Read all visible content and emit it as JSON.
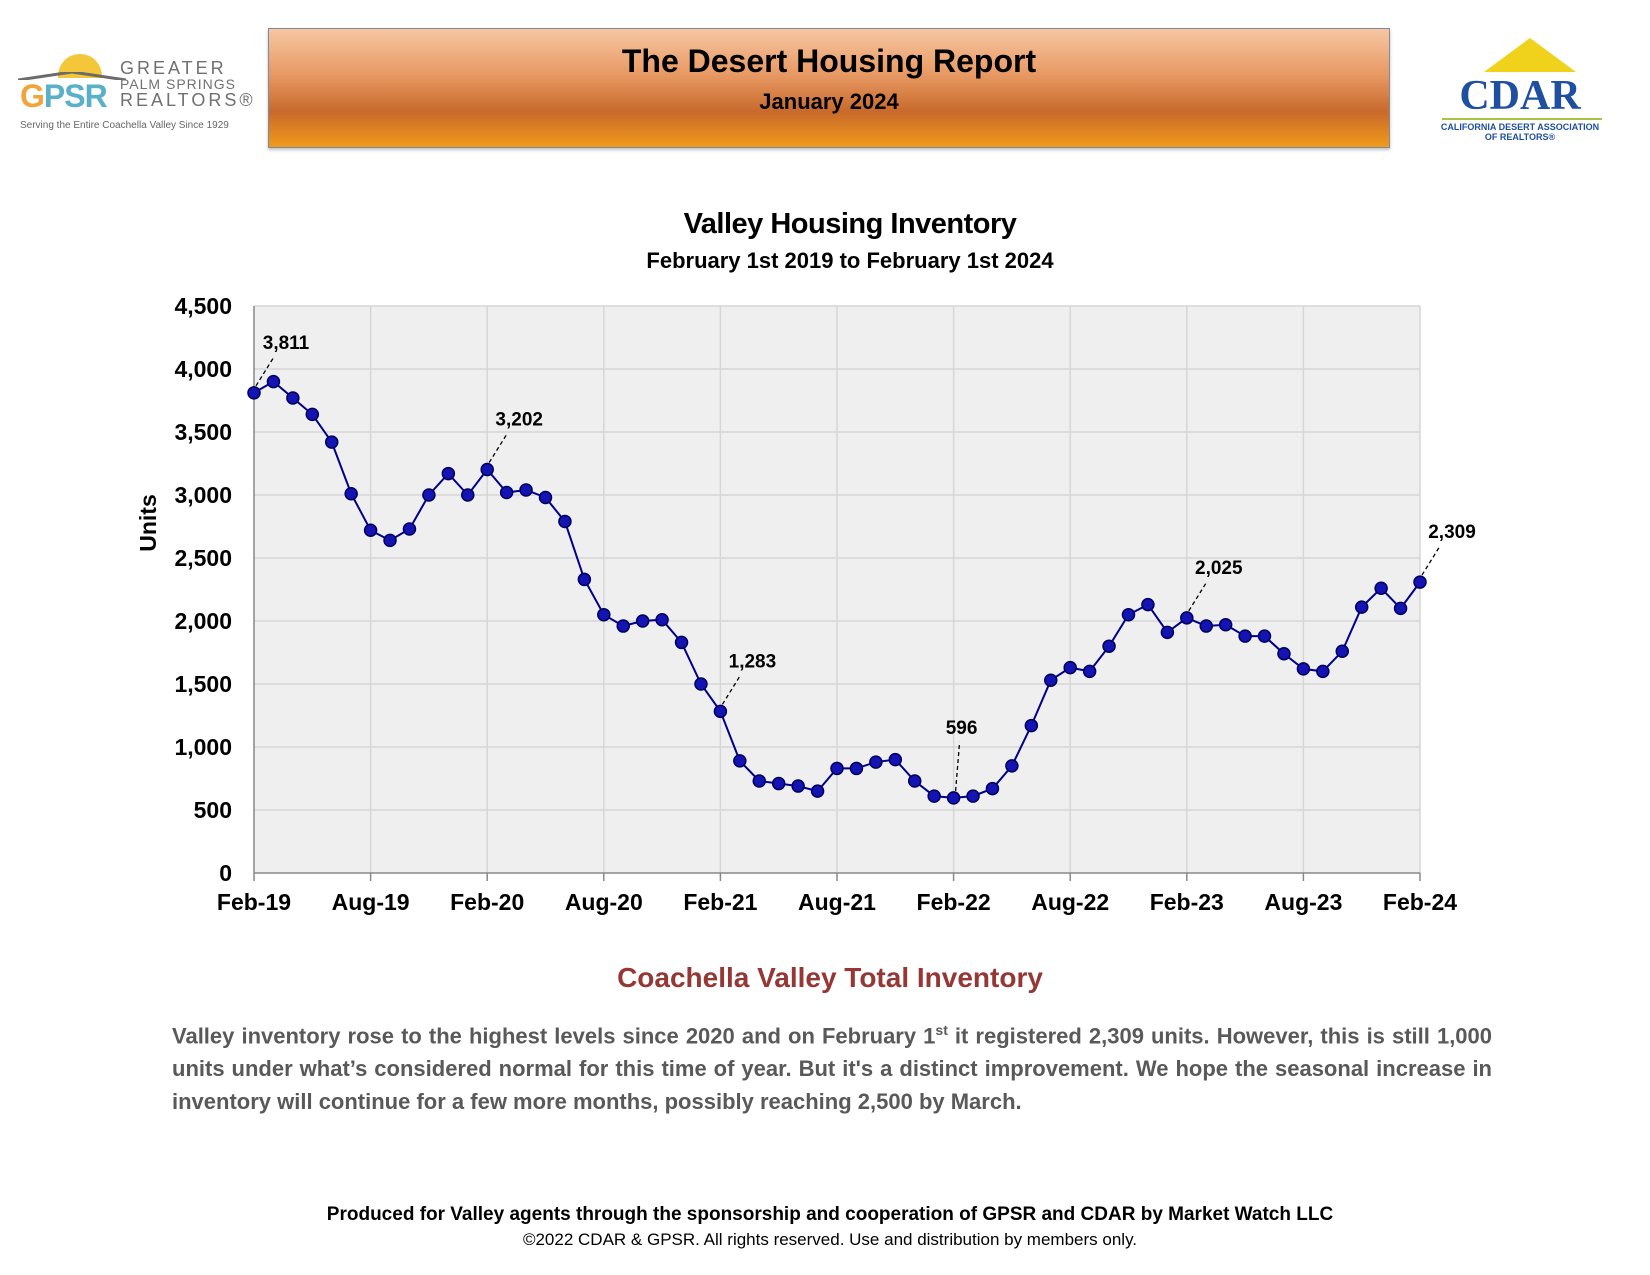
{
  "header": {
    "title": "The Desert Housing Report",
    "subtitle": "January 2024",
    "left_logo": {
      "mark_g": "G",
      "mark_psr": "PSR",
      "line1": "GREATER",
      "line2": "PALM SPRINGS",
      "line3": "REALTORS®",
      "tagline": "Serving the Entire Coachella Valley Since 1929"
    },
    "right_logo": {
      "mark": "CDAR",
      "line1": "CALIFORNIA DESERT ASSOCIATION",
      "line2": "OF REALTORS®"
    }
  },
  "chart_data": {
    "type": "line",
    "title": "Valley Housing Inventory",
    "subtitle": "February 1st 2019 to February 1st 2024",
    "ylabel": "Units",
    "ylim": [
      0,
      4500
    ],
    "yticks": [
      "0",
      "500",
      "1,000",
      "1,500",
      "2,000",
      "2,500",
      "3,000",
      "3,500",
      "4,000",
      "4,500"
    ],
    "xticks": [
      "Feb-19",
      "Aug-19",
      "Feb-20",
      "Aug-20",
      "Feb-21",
      "Aug-21",
      "Feb-22",
      "Aug-22",
      "Feb-23",
      "Aug-23",
      "Feb-24"
    ],
    "grid": true,
    "legend": "none",
    "series_color": "#00008b",
    "plot_bg": "#efefef",
    "series": [
      {
        "values": [
          3811,
          3900,
          3770,
          3640,
          3420,
          3010,
          2720,
          2640,
          2730,
          3000,
          3170,
          3000,
          3202,
          3020,
          3040,
          2980,
          2790,
          2330,
          2050,
          1960,
          2000,
          2010,
          1830,
          1500,
          1283,
          890,
          730,
          710,
          690,
          650,
          830,
          830,
          880,
          900,
          730,
          610,
          596,
          610,
          670,
          850,
          1170,
          1530,
          1630,
          1600,
          1800,
          2050,
          2130,
          1910,
          2025,
          1960,
          1970,
          1880,
          1880,
          1740,
          1620,
          1600,
          1760,
          2110,
          2260,
          2100,
          2309
        ]
      }
    ],
    "annotations": [
      {
        "index": 0,
        "text": "3,811"
      },
      {
        "index": 12,
        "text": "3,202"
      },
      {
        "index": 24,
        "text": "1,283"
      },
      {
        "index": 36,
        "text": "596"
      },
      {
        "index": 48,
        "text": "2,025"
      },
      {
        "index": 60,
        "text": "2,309"
      }
    ]
  },
  "section": {
    "title": "Coachella Valley Total Inventory",
    "body_part1": "Valley inventory rose to the highest levels since 2020 and on February 1",
    "body_sup": "st",
    "body_part2": " it registered 2,309 units. However, this is still 1,000 units under what’s considered normal for this time of year. But it's a distinct improvement. We hope the seasonal increase in inventory will continue for a few more months, possibly reaching 2,500 by March."
  },
  "footer": {
    "line1": "Produced for Valley agents through the sponsorship and cooperation of GPSR and CDAR by Market Watch LLC",
    "line2": "©2022 CDAR & GPSR.  All rights reserved.  Use and distribution by members only."
  }
}
